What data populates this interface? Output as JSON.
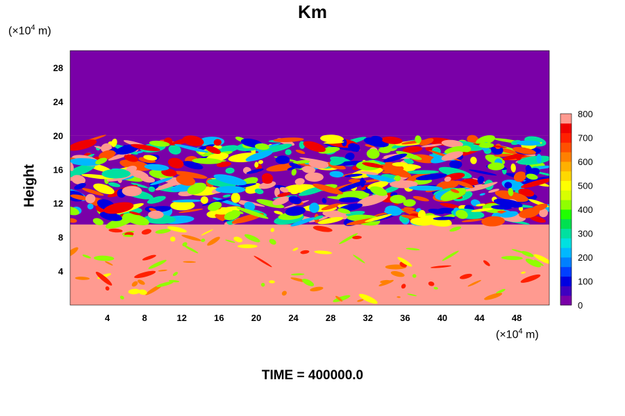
{
  "chart_data": {
    "type": "heatmap",
    "title": "Km",
    "ylabel": "Height",
    "xlabel": "",
    "x_unit": "(×10⁴ m)",
    "y_unit": "(×10⁴ m)",
    "x_ticks": [
      4,
      8,
      12,
      16,
      20,
      24,
      28,
      32,
      36,
      40,
      44,
      48
    ],
    "y_ticks": [
      4,
      8,
      12,
      16,
      20,
      24,
      28
    ],
    "xlim": [
      0,
      51.5
    ],
    "ylim": [
      0,
      30
    ],
    "colorbar": {
      "ticks": [
        0,
        100,
        200,
        300,
        400,
        500,
        600,
        700,
        800
      ],
      "range": [
        0,
        800
      ],
      "colors": [
        "#7a00a8",
        "#3f00c0",
        "#0000e0",
        "#0040ff",
        "#0080ff",
        "#00b8ff",
        "#00e0e0",
        "#00e0a0",
        "#00e050",
        "#20ff00",
        "#90ff00",
        "#d8ff00",
        "#ffff00",
        "#ffd800",
        "#ffb000",
        "#ff8000",
        "#ff5000",
        "#ff2000",
        "#f00000",
        "#ff9a90"
      ]
    },
    "fields": {
      "upper_region": {
        "y_range": [
          20,
          30
        ],
        "value": 0
      },
      "turbulent_band": {
        "y_range": [
          9.5,
          20
        ],
        "value": "0-800 mixed"
      },
      "lower_region": {
        "y_range": [
          0,
          9.5
        ],
        "value": 800
      }
    },
    "annotation": "TIME = 400000.0"
  }
}
